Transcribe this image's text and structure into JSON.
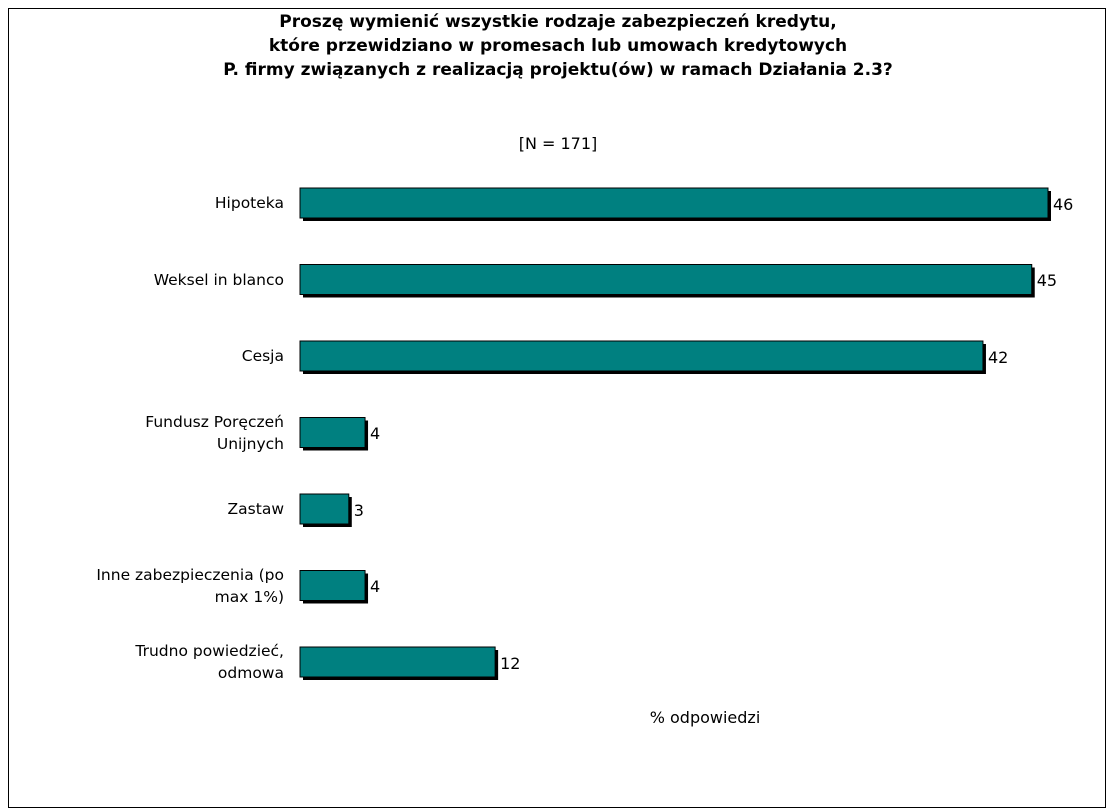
{
  "chart_data": {
    "type": "bar",
    "orientation": "horizontal",
    "title": "Proszę wymienić wszystkie rodzaje zabezpieczeń kredytu,\nktóre przewidziano w promesach lub umowach kredytowych\nP. firmy związanych z realizacją projektu(ów) w ramach Działania 2.3?",
    "subtitle": "[N = 171]",
    "xlabel": "% odpowiedzi",
    "categories": [
      "Hipoteka",
      "Weksel in blanco",
      "Cesja",
      "Fundusz Poręczeń\nUnijnych",
      "Zastaw",
      "Inne zabezpieczenia (po\nmax 1%)",
      "Trudno powiedzieć,\nodmowa"
    ],
    "values": [
      46,
      45,
      42,
      4,
      3,
      4,
      12
    ],
    "color": "#008080"
  }
}
